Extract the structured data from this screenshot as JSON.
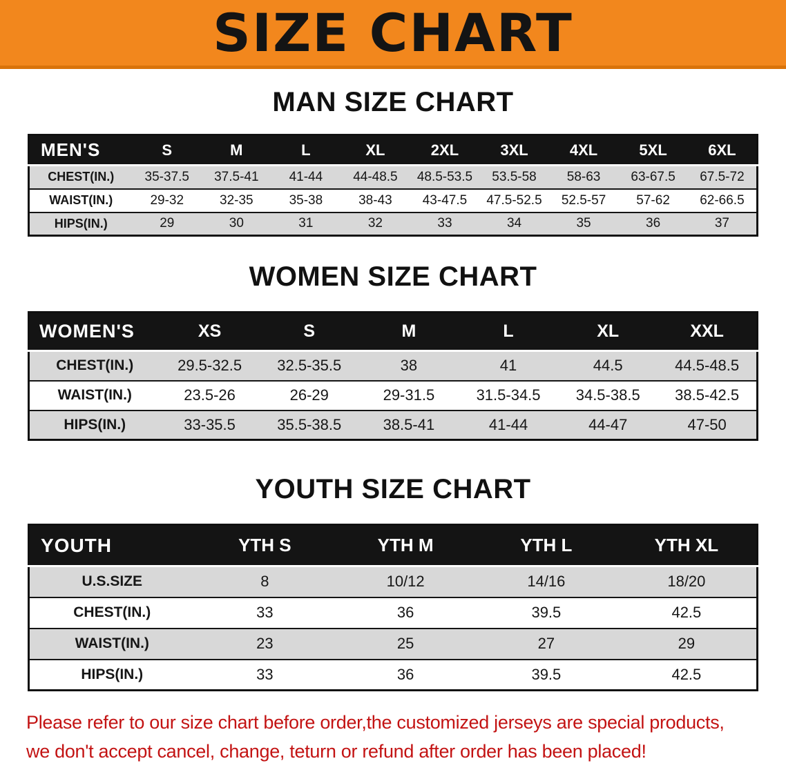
{
  "banner": {
    "title": "SIZE CHART"
  },
  "colors": {
    "banner_bg": "#F2871D",
    "banner_edge": "#D9730A",
    "table_header_bg": "#141414",
    "row_stripe": "#D8D8D8",
    "note_red": "#C31313"
  },
  "sections": [
    {
      "id": "men",
      "heading": "MAN SIZE CHART",
      "table": {
        "header": [
          "MEN'S",
          "S",
          "M",
          "L",
          "XL",
          "2XL",
          "3XL",
          "4XL",
          "5XL",
          "6XL"
        ],
        "rows": [
          [
            "CHEST(IN.)",
            "35-37.5",
            "37.5-41",
            "41-44",
            "44-48.5",
            "48.5-53.5",
            "53.5-58",
            "58-63",
            "63-67.5",
            "67.5-72"
          ],
          [
            "WAIST(IN.)",
            "29-32",
            "32-35",
            "35-38",
            "38-43",
            "43-47.5",
            "47.5-52.5",
            "52.5-57",
            "57-62",
            "62-66.5"
          ],
          [
            "HIPS(IN.)",
            "29",
            "30",
            "31",
            "32",
            "33",
            "34",
            "35",
            "36",
            "37"
          ]
        ]
      }
    },
    {
      "id": "women",
      "heading": "WOMEN SIZE CHART",
      "table": {
        "header": [
          "WOMEN'S",
          "XS",
          "S",
          "M",
          "L",
          "XL",
          "XXL"
        ],
        "rows": [
          [
            "CHEST(IN.)",
            "29.5-32.5",
            "32.5-35.5",
            "38",
            "41",
            "44.5",
            "44.5-48.5"
          ],
          [
            "WAIST(IN.)",
            "23.5-26",
            "26-29",
            "29-31.5",
            "31.5-34.5",
            "34.5-38.5",
            "38.5-42.5"
          ],
          [
            "HIPS(IN.)",
            "33-35.5",
            "35.5-38.5",
            "38.5-41",
            "41-44",
            "44-47",
            "47-50"
          ]
        ]
      }
    },
    {
      "id": "youth",
      "heading": "YOUTH SIZE CHART",
      "table": {
        "header": [
          "YOUTH",
          "YTH S",
          "YTH M",
          "YTH L",
          "YTH XL"
        ],
        "rows": [
          [
            "U.S.SIZE",
            "8",
            "10/12",
            "14/16",
            "18/20"
          ],
          [
            "CHEST(IN.)",
            "33",
            "36",
            "39.5",
            "42.5"
          ],
          [
            "WAIST(IN.)",
            "23",
            "25",
            "27",
            "29"
          ],
          [
            "HIPS(IN.)",
            "33",
            "36",
            "39.5",
            "42.5"
          ]
        ]
      }
    }
  ],
  "footer": {
    "lines": [
      "Please refer to our size chart before order,the customized jerseys are special products,",
      "we don't accept cancel, change, teturn or refund after order has been placed!"
    ]
  }
}
